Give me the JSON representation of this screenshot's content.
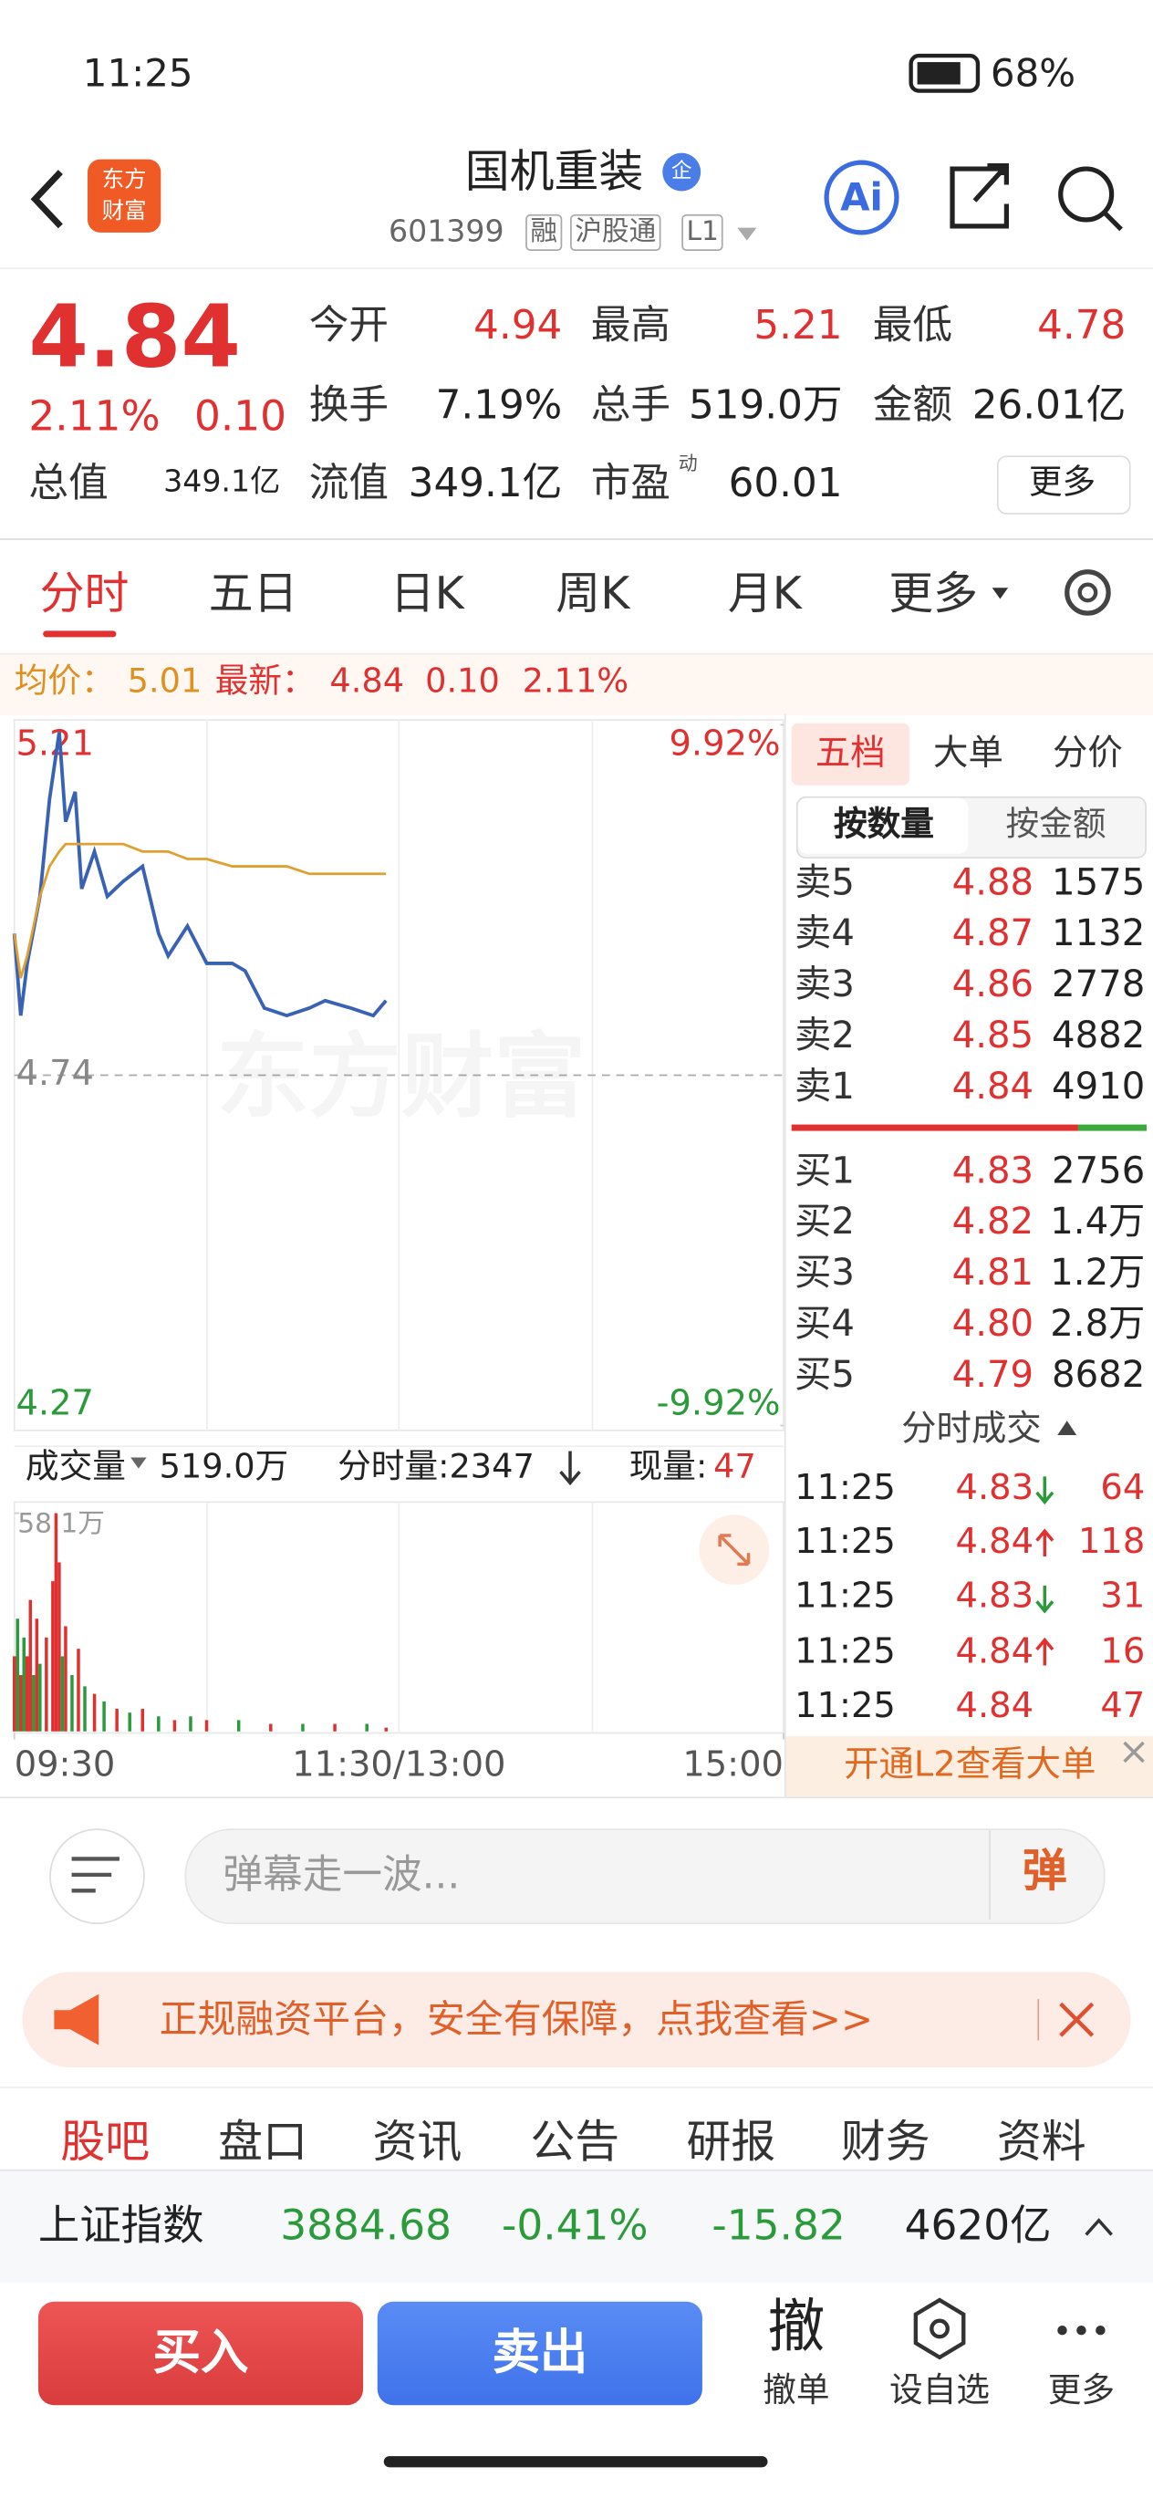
{
  "status_bar": {
    "time": "11:25",
    "battery": "68%"
  },
  "header": {
    "logo": [
      "东方",
      "财富"
    ],
    "title": "国机重装",
    "badge": "企",
    "code": "601399",
    "tags": [
      "融",
      "沪股通",
      "L1"
    ],
    "ai": "Ai"
  },
  "quote": {
    "price": "4.84",
    "change_pct": "2.11%",
    "change": "0.10",
    "stats": [
      [
        "今开",
        "4.94"
      ],
      [
        "最高",
        "5.21"
      ],
      [
        "最低",
        "4.78"
      ],
      [
        "换手",
        "7.19%"
      ],
      [
        "总手",
        "519.0万"
      ],
      [
        "金额",
        "26.01亿"
      ],
      [
        "总值",
        "349.1亿"
      ],
      [
        "流值",
        "349.1亿"
      ],
      [
        "市盈",
        "60.01"
      ]
    ],
    "pe_note": "动",
    "more": "更多"
  },
  "tabs": [
    "分时",
    "五日",
    "日K",
    "周K",
    "月K",
    "更多"
  ],
  "info_bar": {
    "avg_label": "均价：",
    "avg": "5.01",
    "last_label": "最新：",
    "last": "4.84",
    "change": "0.10",
    "change_pct": "2.11%"
  },
  "watermark": "东方财富",
  "chart_data": [
    {
      "type": "line",
      "x": [
        0,
        2,
        4,
        8,
        11,
        14,
        16,
        19,
        21,
        25,
        29,
        34,
        40,
        45,
        48,
        54,
        60,
        68,
        72,
        78,
        85,
        92,
        97,
        105,
        112,
        116
      ],
      "series": [
        {
          "color": "#3a62b4",
          "values": [
            4.93,
            4.82,
            4.89,
            4.98,
            5.11,
            5.2,
            5.08,
            5.12,
            4.99,
            5.04,
            4.98,
            5.0,
            5.02,
            4.93,
            4.9,
            4.94,
            4.89,
            4.89,
            4.88,
            4.83,
            4.82,
            4.83,
            4.84,
            4.83,
            4.82,
            4.84
          ]
        },
        {
          "color": "#e0a030",
          "values": [
            4.93,
            4.87,
            4.9,
            4.98,
            5.02,
            5.04,
            5.05,
            5.05,
            5.05,
            5.05,
            5.05,
            5.05,
            5.04,
            5.04,
            5.04,
            5.03,
            5.03,
            5.02,
            5.02,
            5.02,
            5.02,
            5.01,
            5.01,
            5.01,
            5.01,
            5.01
          ]
        }
      ],
      "ylim": [
        4.27,
        5.21
      ],
      "yticks": [
        5.21,
        4.74,
        4.27
      ],
      "y2lim": [
        -9.92,
        9.92
      ],
      "y2ticks": [
        {
          "value": 9.92,
          "label": "9.92%"
        },
        {
          "value": -9.92,
          "label": "-9.92%"
        }
      ],
      "xlim": [
        0,
        240
      ],
      "xticks": [
        {
          "value": 0,
          "label": "09:30"
        },
        {
          "value": 120,
          "label": "11:30/13:00"
        },
        {
          "value": 240,
          "label": "15:00"
        }
      ]
    },
    {
      "type": "bar",
      "x": [
        0,
        1,
        2,
        3,
        4,
        5,
        6,
        7,
        8,
        10,
        12,
        13,
        14,
        15,
        16,
        18,
        20,
        22,
        25,
        28,
        32,
        36,
        40,
        45,
        50,
        55,
        60,
        70,
        80,
        90,
        100,
        110,
        116
      ],
      "values": [
        20,
        30,
        15,
        25,
        20,
        35,
        15,
        30,
        18,
        25,
        40,
        58.1,
        45,
        20,
        28,
        15,
        22,
        12,
        10,
        8,
        6,
        5,
        6,
        4,
        3,
        4,
        3,
        3,
        2,
        2,
        2,
        2,
        1
      ],
      "colors": [
        "#e03030",
        "#2a9a3a",
        "#e03030",
        "#2a9a3a",
        "#e03030",
        "#e03030",
        "#2a9a3a",
        "#e03030",
        "#2a9a3a",
        "#e03030",
        "#e03030",
        "#e03030",
        "#e03030",
        "#2a9a3a",
        "#e03030",
        "#2a9a3a",
        "#e03030",
        "#2a9a3a",
        "#e03030",
        "#2a9a3a",
        "#e03030",
        "#2a9a3a",
        "#e03030",
        "#2a9a3a",
        "#e03030",
        "#2a9a3a",
        "#e03030",
        "#2a9a3a",
        "#e03030",
        "#2a9a3a",
        "#e03030",
        "#2a9a3a",
        "#e03030"
      ],
      "ylim": [
        0,
        58.1
      ],
      "yticks": [
        {
          "value": 58.1,
          "label": "58.1万"
        }
      ],
      "xlim": [
        0,
        240
      ]
    }
  ],
  "volume_bar": {
    "label": "成交量",
    "total": "519.0万",
    "minute_label": "分时量:2347",
    "now_label": "现量:",
    "now": "47"
  },
  "order_book": {
    "tabs": [
      "五档",
      "大单",
      "分价"
    ],
    "subtabs": [
      "按数量",
      "按金额"
    ],
    "asks": [
      [
        "卖5",
        "4.88",
        "1575"
      ],
      [
        "卖4",
        "4.87",
        "1132"
      ],
      [
        "卖3",
        "4.86",
        "2778"
      ],
      [
        "卖2",
        "4.85",
        "4882"
      ],
      [
        "卖1",
        "4.84",
        "4910"
      ]
    ],
    "bids": [
      [
        "买1",
        "4.83",
        "2756"
      ],
      [
        "买2",
        "4.82",
        "1.4万"
      ],
      [
        "买3",
        "4.81",
        "1.2万"
      ],
      [
        "买4",
        "4.80",
        "2.8万"
      ],
      [
        "买5",
        "4.79",
        "8682"
      ]
    ]
  },
  "trades": {
    "title": "分时成交",
    "rows": [
      [
        "11:25",
        "4.83",
        "64"
      ],
      [
        "11:25",
        "4.84",
        "118"
      ],
      [
        "11:25",
        "4.83",
        "31"
      ],
      [
        "11:25",
        "4.84",
        "16"
      ],
      [
        "11:25",
        "4.84",
        "47"
      ]
    ],
    "arrows": [
      "down",
      "up",
      "down",
      "up",
      null
    ],
    "l2": "开通L2查看大单"
  },
  "comment": {
    "placeholder": "弹幕走一波...",
    "button": "弹"
  },
  "ad": "正规融资平台，安全有保障，点我查看>>",
  "bottom_tabs": [
    "股吧",
    "盘口",
    "资讯",
    "公告",
    "研报",
    "财务",
    "资料"
  ],
  "index_bar": {
    "name": "上证指数",
    "value": "3884.68",
    "change_pct": "-0.41%",
    "change": "-15.82",
    "amount": "4620亿"
  },
  "actions": {
    "buy": "买入",
    "sell": "卖出",
    "cancel_icon": "撤",
    "items": [
      "撤单",
      "设自选",
      "更多"
    ]
  }
}
